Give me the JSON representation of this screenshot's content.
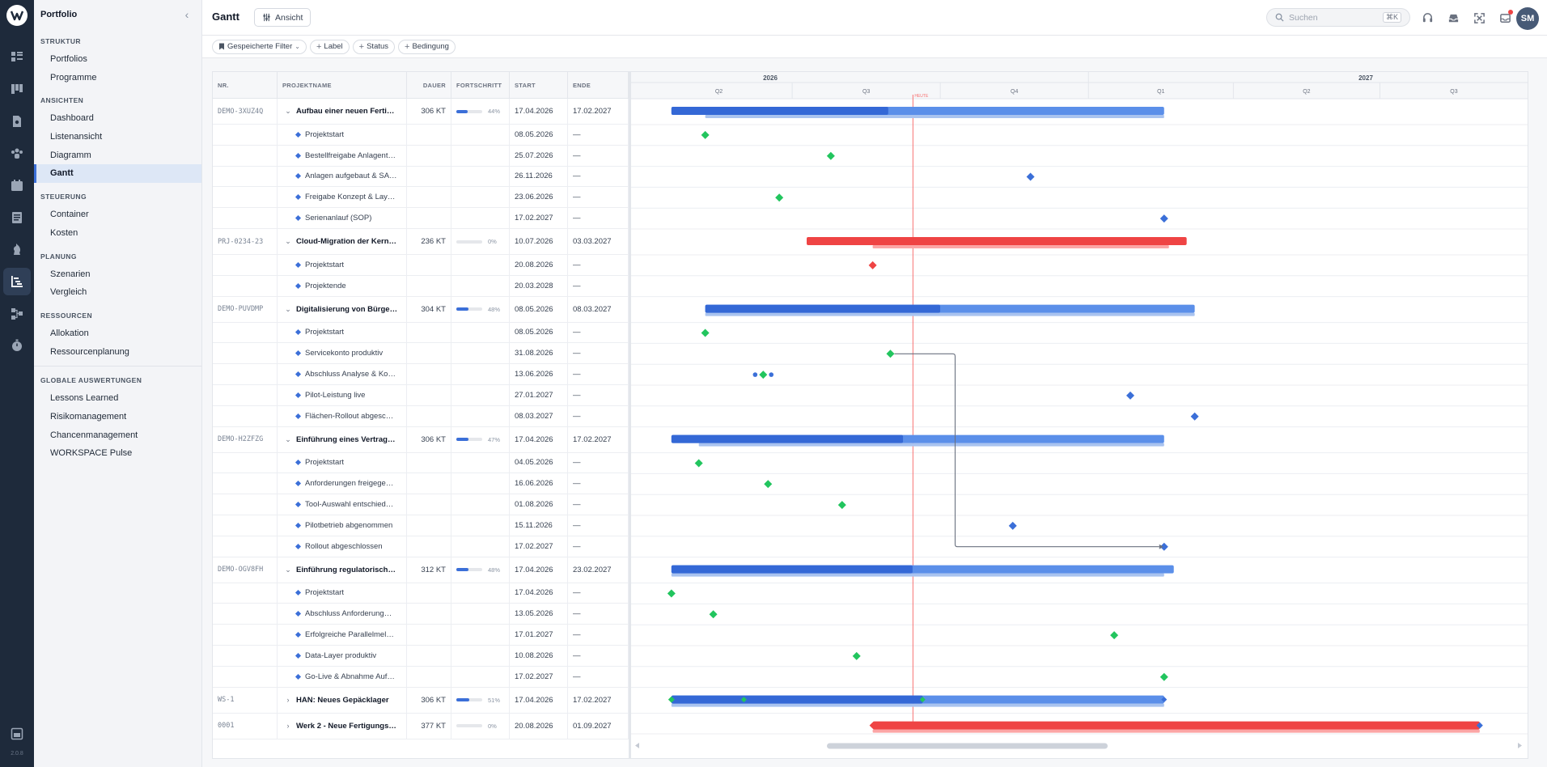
{
  "app": {
    "version": "2.0.8"
  },
  "sidebar": {
    "title": "Portfolio",
    "sections": [
      {
        "title": "STRUKTUR",
        "items": [
          "Portfolios",
          "Programme"
        ]
      },
      {
        "title": "ANSICHTEN",
        "items": [
          "Dashboard",
          "Listenansicht",
          "Diagramm",
          "Gantt"
        ]
      },
      {
        "title": "STEUERUNG",
        "items": [
          "Container",
          "Kosten"
        ]
      },
      {
        "title": "PLANUNG",
        "items": [
          "Szenarien",
          "Vergleich"
        ]
      },
      {
        "title": "RESSOURCEN",
        "items": [
          "Allokation",
          "Ressourcenplanung"
        ]
      },
      {
        "title": "GLOBALE AUSWERTUNGEN",
        "items": [
          "Lessons Learned",
          "Risikomanagement",
          "Chancenmanagement",
          "WORKSPACE Pulse"
        ]
      }
    ],
    "active_item": "Gantt"
  },
  "header": {
    "title": "Gantt",
    "view_button": "Ansicht",
    "search_placeholder": "Suchen",
    "search_shortcut": "⌘K",
    "avatar_initials": "SM"
  },
  "filters": {
    "saved_filters": "Gespeicherte Filter",
    "add_label": "Label",
    "add_status": "Status",
    "add_condition": "Bedingung"
  },
  "columns": {
    "nr": "NR.",
    "name": "PROJEKTNAME",
    "duration": "DAUER",
    "progress": "FORTSCHRITT",
    "start": "START",
    "end": "ENDE"
  },
  "timeline": {
    "years": [
      {
        "label": "2026"
      },
      {
        "label": "2027"
      }
    ],
    "quarters": [
      "Q2",
      "Q3",
      "Q4",
      "Q1",
      "Q2",
      "Q3"
    ],
    "today_label": "HEUTE",
    "today": "2026-09-14"
  },
  "rows": [
    {
      "type": "project",
      "nr": "DEMO-3XUZ4Q",
      "name": "Aufbau einer neuen Ferti…",
      "duration": "306 KT",
      "progress": 44,
      "progress_label": "44%",
      "start": "17.04.2026",
      "end": "17.02.2027",
      "expanded": true,
      "color": "#3b6fd8",
      "bar": [
        "2026-04-17",
        "2027-02-17"
      ],
      "baseline": [
        "2026-05-08",
        "2027-02-17"
      ]
    },
    {
      "type": "milestone",
      "name": "Projektstart",
      "start": "08.05.2026",
      "end": "—",
      "date": "2026-05-08",
      "color": "#22c55e"
    },
    {
      "type": "milestone",
      "name": "Bestellfreigabe Anlagent…",
      "start": "25.07.2026",
      "end": "—",
      "date": "2026-07-25",
      "color": "#22c55e"
    },
    {
      "type": "milestone",
      "name": "Anlagen aufgebaut & SA…",
      "start": "26.11.2026",
      "end": "—",
      "date": "2026-11-26",
      "color": "#3b6fd8"
    },
    {
      "type": "milestone",
      "name": "Freigabe Konzept & Lay…",
      "start": "23.06.2026",
      "end": "—",
      "date": "2026-06-23",
      "color": "#22c55e"
    },
    {
      "type": "milestone",
      "name": "Serienanlauf (SOP)",
      "start": "17.02.2027",
      "end": "—",
      "date": "2027-02-17",
      "color": "#3b6fd8"
    },
    {
      "type": "project",
      "nr": "PRJ-0234-23",
      "name": "Cloud-Migration der Kern…",
      "duration": "236 KT",
      "progress": 0,
      "progress_label": "0%",
      "start": "10.07.2026",
      "end": "03.03.2027",
      "expanded": true,
      "color": "#ef4444",
      "bar": [
        "2026-07-10",
        "2027-03-03"
      ],
      "baseline": [
        "2026-08-20",
        "2027-02-20"
      ]
    },
    {
      "type": "milestone",
      "name": "Projektstart",
      "start": "20.08.2026",
      "end": "—",
      "date": "2026-08-20",
      "color": "#ef4444"
    },
    {
      "type": "milestone",
      "name": "Projektende",
      "start": "20.03.2028",
      "end": "—"
    },
    {
      "type": "project",
      "nr": "DEMO-PUVDMP",
      "name": "Digitalisierung von Bürge…",
      "duration": "304 KT",
      "progress": 48,
      "progress_label": "48%",
      "start": "08.05.2026",
      "end": "08.03.2027",
      "expanded": true,
      "color": "#3b6fd8",
      "bar": [
        "2026-05-08",
        "2027-03-08"
      ],
      "baseline": [
        "2026-05-08",
        "2027-03-08"
      ]
    },
    {
      "type": "milestone",
      "name": "Projektstart",
      "start": "08.05.2026",
      "end": "—",
      "date": "2026-05-08",
      "color": "#22c55e"
    },
    {
      "type": "milestone",
      "name": "Servicekonto produktiv",
      "start": "31.08.2026",
      "end": "—",
      "date": "2026-08-31",
      "color": "#22c55e"
    },
    {
      "type": "milestone",
      "name": "Abschluss Analyse & Ko…",
      "start": "13.06.2026",
      "end": "—",
      "date": "2026-06-13",
      "color": "#22c55e",
      "extra_dots": [
        "2026-06-08",
        "2026-06-18"
      ]
    },
    {
      "type": "milestone",
      "name": "Pilot-Leistung live",
      "start": "27.01.2027",
      "end": "—",
      "date": "2027-01-27",
      "color": "#3b6fd8"
    },
    {
      "type": "milestone",
      "name": "Flächen-Rollout abgesc…",
      "start": "08.03.2027",
      "end": "—",
      "date": "2027-03-08",
      "color": "#3b6fd8"
    },
    {
      "type": "project",
      "nr": "DEMO-H2ZFZG",
      "name": "Einführung eines Vertrag…",
      "duration": "306 KT",
      "progress": 47,
      "progress_label": "47%",
      "start": "17.04.2026",
      "end": "17.02.2027",
      "expanded": true,
      "color": "#3b6fd8",
      "bar": [
        "2026-04-17",
        "2027-02-17"
      ],
      "baseline": [
        "2026-05-04",
        "2027-02-17"
      ]
    },
    {
      "type": "milestone",
      "name": "Projektstart",
      "start": "04.05.2026",
      "end": "—",
      "date": "2026-05-04",
      "color": "#22c55e"
    },
    {
      "type": "milestone",
      "name": "Anforderungen freigege…",
      "start": "16.06.2026",
      "end": "—",
      "date": "2026-06-16",
      "color": "#22c55e"
    },
    {
      "type": "milestone",
      "name": "Tool-Auswahl entschied…",
      "start": "01.08.2026",
      "end": "—",
      "date": "2026-08-01",
      "color": "#22c55e"
    },
    {
      "type": "milestone",
      "name": "Pilotbetrieb abgenommen",
      "start": "15.11.2026",
      "end": "—",
      "date": "2026-11-15",
      "color": "#3b6fd8"
    },
    {
      "type": "milestone",
      "name": "Rollout abgeschlossen",
      "start": "17.02.2027",
      "end": "—",
      "date": "2027-02-17",
      "color": "#3b6fd8"
    },
    {
      "type": "project",
      "nr": "DEMO-OGV8FH",
      "name": "Einführung regulatorisch…",
      "duration": "312 KT",
      "progress": 48,
      "progress_label": "48%",
      "start": "17.04.2026",
      "end": "23.02.2027",
      "expanded": true,
      "color": "#3b6fd8",
      "bar": [
        "2026-04-17",
        "2027-02-23"
      ],
      "baseline": [
        "2026-04-17",
        "2027-02-17"
      ]
    },
    {
      "type": "milestone",
      "name": "Projektstart",
      "start": "17.04.2026",
      "end": "—",
      "date": "2026-04-17",
      "color": "#22c55e"
    },
    {
      "type": "milestone",
      "name": "Abschluss Anforderung…",
      "start": "13.05.2026",
      "end": "—",
      "date": "2026-05-13",
      "color": "#22c55e"
    },
    {
      "type": "milestone",
      "name": "Erfolgreiche Parallelmel…",
      "start": "17.01.2027",
      "end": "—",
      "date": "2027-01-17",
      "color": "#22c55e"
    },
    {
      "type": "milestone",
      "name": "Data-Layer produktiv",
      "start": "10.08.2026",
      "end": "—",
      "date": "2026-08-10",
      "color": "#22c55e"
    },
    {
      "type": "milestone",
      "name": "Go-Live & Abnahme Auf…",
      "start": "17.02.2027",
      "end": "—",
      "date": "2027-02-17",
      "color": "#22c55e"
    },
    {
      "type": "project",
      "nr": "WS-1",
      "name": "HAN: Neues Gepäcklager",
      "duration": "306 KT",
      "progress": 51,
      "progress_label": "51%",
      "start": "17.04.2026",
      "end": "17.02.2027",
      "expanded": false,
      "color": "#3b6fd8",
      "bar": [
        "2026-04-17",
        "2027-02-17"
      ],
      "baseline": [
        "2026-04-17",
        "2027-02-17"
      ],
      "inline_ms": [
        "2026-06-01",
        "2026-09-20"
      ]
    },
    {
      "type": "project",
      "nr": "0001",
      "name": "Werk 2 - Neue Fertigungs…",
      "duration": "377 KT",
      "progress": 0,
      "progress_label": "0%",
      "start": "20.08.2026",
      "end": "01.09.2027",
      "expanded": false,
      "color": "#ef4444",
      "bar": [
        "2026-08-20",
        "2027-09-01"
      ],
      "baseline": [
        "2026-08-20",
        "2027-09-01"
      ]
    }
  ],
  "dependency": {
    "from_row": 11,
    "to_row": 20
  }
}
